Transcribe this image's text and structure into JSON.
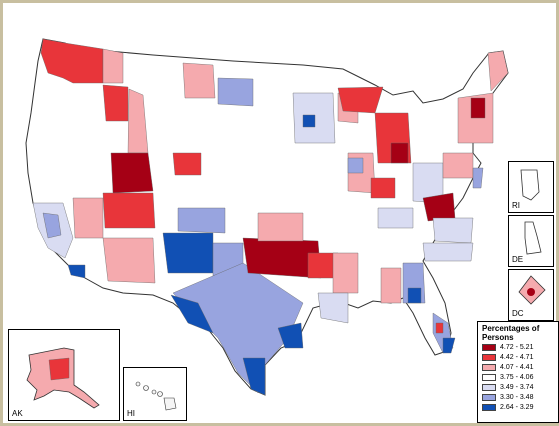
{
  "legend": {
    "title": "Percentages of Persons",
    "classes": [
      {
        "label": "4.72 - 5.21",
        "color": "#a50015"
      },
      {
        "label": "4.42 - 4.71",
        "color": "#e8353a"
      },
      {
        "label": "4.07 - 4.41",
        "color": "#f5aaae"
      },
      {
        "label": "3.75 - 4.06",
        "color": "#ffffff"
      },
      {
        "label": "3.49 - 3.74",
        "color": "#d9dcf2"
      },
      {
        "label": "3.30 - 3.48",
        "color": "#98a4df"
      },
      {
        "label": "2.64 - 3.29",
        "color": "#1150b4"
      }
    ]
  },
  "insets": {
    "alaska": "AK",
    "hawaii": "HI",
    "rhode_island": "RI",
    "delaware": "DE",
    "dc": "DC"
  }
}
